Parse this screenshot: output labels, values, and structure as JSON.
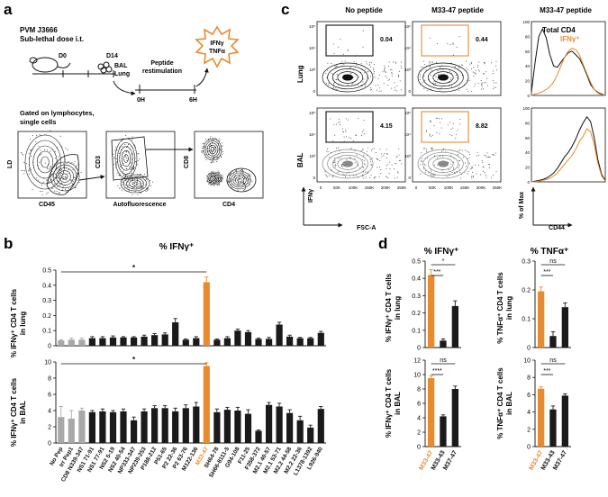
{
  "panels": {
    "a": {
      "letter": "a",
      "strain": "PVM J3666",
      "dose": "Sub-lethal dose i.t.",
      "d0": "D0",
      "d14": "D14",
      "bal": "BAL",
      "lung": "Lung",
      "restim1": "Peptide",
      "restim2": "restimulation",
      "t0": "0H",
      "t6": "6H",
      "burst1": "IFNγ",
      "burst2": "TNFα",
      "gated1": "Gated on lymphocytes,",
      "gated2": "single cells",
      "flow": [
        {
          "ylabel": "LD",
          "xlabel": "CD45"
        },
        {
          "ylabel": "CD3",
          "xlabel": "Autofluorescence"
        },
        {
          "ylabel": "CD8",
          "xlabel": "CD4"
        }
      ]
    },
    "b": {
      "letter": "b",
      "title": "% IFNγ⁺",
      "star": "*",
      "top_ylabel": [
        "% IFNγ⁺ CD4 T cells",
        "in lung"
      ],
      "bottom_ylabel": [
        "% IFNγ⁺ CD4 T cells",
        "in BAL"
      ]
    },
    "c": {
      "letter": "c",
      "col1": "No peptide",
      "col2": "M33-47 peptide",
      "col3": "M33-47 peptide",
      "row1": "Lung",
      "row2": "BAL",
      "gates": [
        "0.04",
        "0.44",
        "4.15",
        "8.82"
      ],
      "xaxis": "FSC-A",
      "yaxis": "IFNγ",
      "xticks": [
        "0",
        "50K",
        "100K",
        "150K",
        "200K",
        "250K"
      ],
      "legend_total": "Total CD4",
      "legend_ifng": "IFNγ⁺",
      "hist_ylabel": "% of Max",
      "hist_xlabel": "CD44",
      "hist_yticks": [
        "0",
        "20",
        "40",
        "60",
        "80",
        "100"
      ]
    },
    "d": {
      "letter": "d",
      "title_ifng": "% IFNγ⁺",
      "title_tnfa": "% TNFα⁺",
      "ylabels": {
        "ifng_lung": [
          "% IFNγ⁺ CD4 T cells",
          "in lung"
        ],
        "ifng_bal": [
          "% IFNγ⁺ CD4 T cells",
          "in BAL"
        ],
        "tnfa_lung": [
          "% TNFα⁺ CD4 T cells",
          "in lung"
        ],
        "tnfa_bal": [
          "% TNFα⁺ CD4 T cells",
          "in BAL"
        ]
      }
    }
  },
  "colors": {
    "orange": "#e88b2e",
    "grey": "#a8a8a8",
    "black": "#1a1a1a"
  },
  "chart_data": [
    {
      "id": "b_lung",
      "type": "bar",
      "title": "% IFNγ⁺",
      "ylabel": "% IFNγ⁺ CD4 T cells in lung",
      "ylim": [
        0,
        0.5
      ],
      "yticks": [
        "0",
        "0.1",
        "0.2",
        "0.3",
        "0.4",
        "0.5"
      ],
      "categories": [
        "No Pep",
        "Irr Pep1",
        "CD8 N339-347",
        "NS1 71-91",
        "NS1 77-91",
        "NS2 5-19",
        "NS2 40-54",
        "NP333-347",
        "NP239-253",
        "P188-212",
        "P51-65",
        "P2 22-36",
        "P2 63-76",
        "M122-136",
        "M33-47",
        "SH64-78",
        "SH66-8111-5",
        "G94-108",
        "F11-25",
        "F358-372",
        "M2.1 40-57",
        "M2.1 53-71",
        "M2.2 44-58",
        "M2.2 22-36",
        "L1378-1392",
        "L926-940"
      ],
      "values": [
        0.035,
        0.04,
        0.04,
        0.05,
        0.05,
        0.055,
        0.055,
        0.055,
        0.06,
        0.07,
        0.075,
        0.155,
        0.04,
        0.05,
        0.42,
        0.04,
        0.05,
        0.1,
        0.09,
        0.045,
        0.045,
        0.14,
        0.06,
        0.05,
        0.05,
        0.085
      ],
      "errors": [
        0.005,
        0.01,
        0.01,
        0.01,
        0.01,
        0.01,
        0.005,
        0.005,
        0.01,
        0.01,
        0.01,
        0.025,
        0.005,
        0.01,
        0.035,
        0.005,
        0.01,
        0.01,
        0.01,
        0.005,
        0.01,
        0.015,
        0.01,
        0.005,
        0.005,
        0.01
      ],
      "colors": [
        "grey",
        "grey",
        "grey",
        "black",
        "black",
        "black",
        "black",
        "black",
        "black",
        "black",
        "black",
        "black",
        "black",
        "black",
        "orange",
        "black",
        "black",
        "black",
        "black",
        "black",
        "black",
        "black",
        "black",
        "black",
        "black",
        "black"
      ],
      "significance": "*"
    },
    {
      "id": "b_bal",
      "type": "bar",
      "ylabel": "% IFNγ⁺ CD4 T cells in BAL",
      "ylim": [
        0,
        10
      ],
      "yticks": [
        "0",
        "2",
        "4",
        "6",
        "8",
        "10"
      ],
      "categories": [
        "No Pep",
        "Irr Pep1",
        "CD8 N339-347",
        "NS1 71-91",
        "NS1 77-91",
        "NS2 5-19",
        "NS2 40-54",
        "NP333-347",
        "NP239-253",
        "P188-212",
        "P51-65",
        "P2 22-36",
        "P2 63-76",
        "M122-136",
        "M33-47",
        "SH64-78",
        "SH66-8111-5",
        "G94-108",
        "F11-25",
        "F358-372",
        "M2.1 40-57",
        "M2.1 53-71",
        "M2.2 44-58",
        "M2.2 22-36",
        "L1378-1392",
        "L926-940"
      ],
      "values": [
        3.2,
        3.0,
        4.0,
        3.8,
        3.9,
        3.8,
        3.9,
        2.8,
        3.9,
        4.3,
        4.3,
        3.9,
        4.3,
        4.5,
        9.5,
        3.8,
        4.1,
        4.0,
        3.6,
        1.5,
        4.7,
        4.5,
        3.7,
        2.8,
        1.9,
        4.2
      ],
      "errors": [
        1.3,
        1.0,
        0.3,
        0.2,
        0.3,
        0.2,
        0.3,
        0.4,
        0.3,
        0.3,
        0.3,
        0.4,
        0.4,
        0.5,
        0.4,
        0.4,
        0.3,
        0.4,
        0.5,
        0.1,
        0.3,
        0.4,
        0.4,
        0.5,
        0.3,
        0.3
      ],
      "colors": [
        "grey",
        "grey",
        "grey",
        "black",
        "black",
        "black",
        "black",
        "black",
        "black",
        "black",
        "black",
        "black",
        "black",
        "black",
        "orange",
        "black",
        "black",
        "black",
        "black",
        "black",
        "black",
        "black",
        "black",
        "black",
        "black",
        "black"
      ],
      "significance": "*"
    },
    {
      "id": "d_ifng_lung",
      "type": "bar",
      "title": "% IFNγ⁺",
      "ylim": [
        0,
        0.5
      ],
      "yticks": [
        "0",
        "0.1",
        "0.2",
        "0.3",
        "0.4",
        "0.5"
      ],
      "categories": [
        "M33-47",
        "M33-43",
        "M37-47"
      ],
      "values": [
        0.42,
        0.04,
        0.24
      ],
      "errors": [
        0.03,
        0.01,
        0.03
      ],
      "colors": [
        "orange",
        "black",
        "black"
      ],
      "significance": [
        {
          "pair": [
            0,
            2
          ],
          "label": "*"
        },
        {
          "pair": [
            0,
            1
          ],
          "label": "***"
        }
      ]
    },
    {
      "id": "d_ifng_bal",
      "type": "bar",
      "ylim": [
        0,
        12
      ],
      "yticks": [
        "0",
        "2",
        "4",
        "6",
        "8",
        "10",
        "12"
      ],
      "categories": [
        "M33-47",
        "M33-43",
        "M37-47"
      ],
      "values": [
        9.5,
        4.2,
        8.0
      ],
      "errors": [
        0.3,
        0.2,
        0.4
      ],
      "colors": [
        "orange",
        "black",
        "black"
      ],
      "significance": [
        {
          "pair": [
            0,
            2
          ],
          "label": "ns"
        },
        {
          "pair": [
            0,
            1
          ],
          "label": "****"
        }
      ]
    },
    {
      "id": "d_tnfa_lung",
      "type": "bar",
      "title": "% TNFα⁺",
      "ylim": [
        0,
        0.3
      ],
      "yticks": [
        "0",
        "0.1",
        "0.2",
        "0.3"
      ],
      "categories": [
        "M33-47",
        "M33-43",
        "M37-47"
      ],
      "values": [
        0.195,
        0.04,
        0.14
      ],
      "errors": [
        0.015,
        0.015,
        0.015
      ],
      "colors": [
        "orange",
        "black",
        "black"
      ],
      "significance": [
        {
          "pair": [
            0,
            2
          ],
          "label": "ns"
        },
        {
          "pair": [
            0,
            1
          ],
          "label": "***"
        }
      ]
    },
    {
      "id": "d_tnfa_bal",
      "type": "bar",
      "ylim": [
        0,
        10
      ],
      "yticks": [
        "0",
        "2",
        "4",
        "6",
        "8",
        "10"
      ],
      "categories": [
        "M33-47",
        "M33-43",
        "M37-47"
      ],
      "values": [
        6.7,
        4.3,
        5.9
      ],
      "errors": [
        0.2,
        0.4,
        0.2
      ],
      "colors": [
        "orange",
        "black",
        "black"
      ],
      "significance": [
        {
          "pair": [
            0,
            2
          ],
          "label": "ns"
        },
        {
          "pair": [
            0,
            1
          ],
          "label": "***"
        }
      ]
    },
    {
      "id": "c_hist_lung",
      "type": "line",
      "xlabel": "CD44",
      "ylabel": "% of Max",
      "ylim": [
        0,
        100
      ],
      "series": [
        {
          "name": "Total CD4",
          "x": [
            0,
            0.5,
            1,
            1.5,
            2,
            2.5,
            3,
            3.5,
            4,
            4.5,
            5,
            5.5,
            6,
            6.5,
            7,
            7.5,
            8,
            8.5,
            9,
            9.5,
            10
          ],
          "values": [
            5,
            45,
            80,
            90,
            78,
            55,
            40,
            38,
            45,
            52,
            58,
            60,
            55,
            50,
            40,
            28,
            15,
            8,
            4,
            2,
            0
          ]
        },
        {
          "name": "IFNγ⁺",
          "x": [
            0,
            0.5,
            1,
            1.5,
            2,
            2.5,
            3,
            3.5,
            4,
            4.5,
            5,
            5.5,
            6,
            6.5,
            7,
            7.5,
            8,
            8.5,
            9,
            9.5,
            10
          ],
          "values": [
            0,
            2,
            3,
            5,
            8,
            12,
            18,
            28,
            40,
            52,
            60,
            64,
            62,
            55,
            42,
            30,
            18,
            8,
            3,
            1,
            0
          ]
        }
      ]
    },
    {
      "id": "c_hist_bal",
      "type": "line",
      "xlabel": "CD44",
      "ylabel": "% of Max",
      "ylim": [
        0,
        100
      ],
      "series": [
        {
          "name": "Total CD4",
          "x": [
            0,
            0.5,
            1,
            1.5,
            2,
            2.5,
            3,
            3.5,
            4,
            4.5,
            5,
            5.5,
            6,
            6.5,
            7,
            7.5,
            8,
            8.5,
            9,
            9.5,
            10
          ],
          "values": [
            0,
            1,
            2,
            3,
            5,
            8,
            12,
            18,
            26,
            34,
            40,
            48,
            58,
            70,
            80,
            88,
            82,
            60,
            30,
            10,
            2
          ]
        },
        {
          "name": "IFNγ⁺",
          "x": [
            0,
            0.5,
            1,
            1.5,
            2,
            2.5,
            3,
            3.5,
            4,
            4.5,
            5,
            5.5,
            6,
            6.5,
            7,
            7.5,
            8,
            8.5,
            9,
            9.5,
            10
          ],
          "values": [
            0,
            0,
            1,
            2,
            3,
            5,
            8,
            12,
            18,
            24,
            30,
            36,
            44,
            55,
            62,
            72,
            68,
            50,
            25,
            8,
            1
          ]
        }
      ]
    }
  ]
}
